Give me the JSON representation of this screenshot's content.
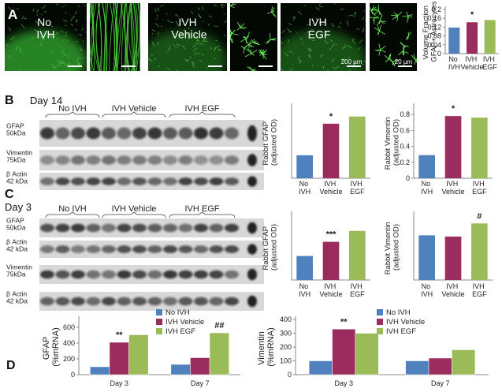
{
  "panel_labels": [
    "A",
    "B",
    "C",
    "D"
  ],
  "panel_a": {
    "image_labels": [
      "No IVH",
      "IVH Vehicle",
      "IVH EGF"
    ],
    "scale_bars": [
      "200 µm",
      "20 µm"
    ]
  },
  "panel_b": {
    "day": "Day 14",
    "groups": [
      "No IVH",
      "IVH Vehicle",
      "IVH EGF"
    ],
    "rows": [
      "GFAP 50kDa",
      "Vimentin 75kDa",
      "β Actin 42 kDa"
    ]
  },
  "panel_c": {
    "day": "Day 3",
    "groups": [
      "No IVH",
      "IVH Vehicle",
      "IVH EGF"
    ],
    "rows": [
      "GFAP 50kDa",
      "β Actin 42 kDa",
      "Vimentin 75kDa",
      "β Actin 42 kDa"
    ]
  },
  "chart_data": [
    {
      "type": "bar",
      "ylabel": "Volume Fraction GFAP+ Astrocytes",
      "categories": [
        "No IVH",
        "IVH Vehicle",
        "IVH EGF"
      ],
      "values": [
        0.118,
        0.142,
        0.152
      ],
      "colors": [
        "#4f81bd",
        "#9b2d5e",
        "#9bbb59"
      ],
      "ylim": [
        0,
        0.2
      ],
      "yticks": [
        0,
        0.04,
        0.08,
        0.12,
        0.16,
        0.2
      ],
      "annotations": [
        {
          "text": "*",
          "category": "IVH Vehicle"
        }
      ]
    },
    {
      "type": "bar",
      "ylabel": "Rabbit GFAP (adjusted OD)",
      "categories": [
        "No IVH",
        "IVH Vehicle",
        "IVH EGF"
      ],
      "values": [
        1.6,
        3.8,
        4.3
      ],
      "colors": [
        "#4f81bd",
        "#9b2d5e",
        "#9bbb59"
      ],
      "ylim": [
        0,
        5
      ],
      "annotations": [
        {
          "text": "*",
          "category": "IVH Vehicle"
        }
      ]
    },
    {
      "type": "bar",
      "ylabel": "Rabbit Vimentin (adjusted OD)",
      "categories": [
        "No IVH",
        "IVH Vehicle",
        "IVH EGF"
      ],
      "values": [
        0.29,
        0.78,
        0.76
      ],
      "colors": [
        "#4f81bd",
        "#9b2d5e",
        "#9bbb59"
      ],
      "ylim": [
        0,
        0.9
      ],
      "yticks": [
        0,
        0.2,
        0.4,
        0.6,
        0.8
      ],
      "annotations": [
        {
          "text": "*",
          "category": "IVH Vehicle"
        }
      ]
    },
    {
      "type": "bar",
      "ylabel": "Rabbit GFAP (adjusted OD)",
      "categories": [
        "No IVH",
        "IVH Vehicle",
        "IVH EGF"
      ],
      "values": [
        1.1,
        1.75,
        2.25
      ],
      "colors": [
        "#4f81bd",
        "#9b2d5e",
        "#9bbb59"
      ],
      "ylim": [
        0,
        3
      ],
      "annotations": [
        {
          "text": "***",
          "category": "IVH Vehicle"
        }
      ]
    },
    {
      "type": "bar",
      "ylabel": "Rabbit Vimentin (adjusted OD)",
      "categories": [
        "No IVH",
        "IVH Vehicle",
        "IVH EGF"
      ],
      "values": [
        0.75,
        0.73,
        0.95
      ],
      "colors": [
        "#4f81bd",
        "#9b2d5e",
        "#9bbb59"
      ],
      "ylim": [
        0,
        1.1
      ],
      "annotations": [
        {
          "text": "#",
          "category": "IVH EGF"
        }
      ]
    },
    {
      "type": "grouped-bar",
      "ylabel": "GFAP (%mRNA)",
      "categories": [
        "Day 3",
        "Day 7"
      ],
      "series": [
        {
          "name": "No IVH",
          "color": "#4f81bd",
          "values": [
            100,
            130
          ]
        },
        {
          "name": "IVH Vehicle",
          "color": "#9b2d5e",
          "values": [
            410,
            215
          ]
        },
        {
          "name": "IVH EGF",
          "color": "#9bbb59",
          "values": [
            505,
            530
          ]
        }
      ],
      "ylim": [
        0,
        700
      ],
      "yticks": [
        0,
        200,
        400,
        600
      ],
      "annotations": [
        {
          "text": "**",
          "category": "Day 3",
          "series": "IVH Vehicle"
        },
        {
          "text": "##",
          "category": "Day 7",
          "series": "IVH EGF"
        }
      ]
    },
    {
      "type": "grouped-bar",
      "ylabel": "Vimentin (%mRNA)",
      "categories": [
        "Day 3",
        "Day 7"
      ],
      "series": [
        {
          "name": "No IVH",
          "color": "#4f81bd",
          "values": [
            100,
            100
          ]
        },
        {
          "name": "IVH Vehicle",
          "color": "#9b2d5e",
          "values": [
            330,
            120
          ]
        },
        {
          "name": "IVH EGF",
          "color": "#9bbb59",
          "values": [
            300,
            180
          ]
        }
      ],
      "ylim": [
        0,
        400
      ],
      "yticks": [
        0,
        100,
        200,
        300,
        400
      ],
      "annotations": [
        {
          "text": "**",
          "category": "Day 3",
          "series": "IVH Vehicle"
        }
      ]
    }
  ]
}
